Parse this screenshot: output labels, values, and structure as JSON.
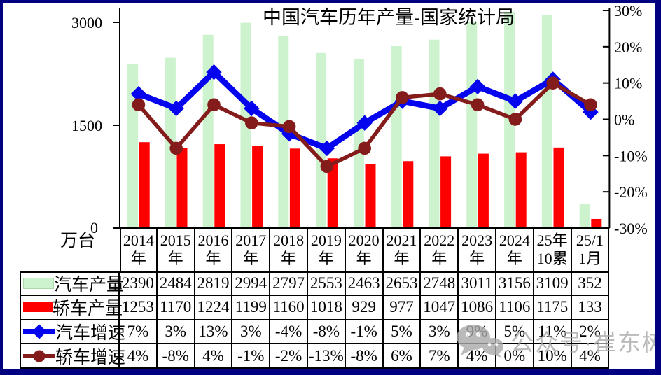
{
  "title": "中国汽车历年产量-国家统计局",
  "axis_left_unit": "万台",
  "axis_left_ticks": [
    "3000",
    "1500",
    "0"
  ],
  "axis_right_ticks": [
    "30%",
    "20%",
    "10%",
    "0%",
    "-10%",
    "-20%",
    "-30%"
  ],
  "watermark": {
    "label": "公众号·崔东树",
    "icon": "wechat-icon"
  },
  "colors": {
    "frame": "#000080",
    "table_border": "#000000",
    "watermark": "#A9A9A9"
  },
  "chart_data": {
    "type": "combo-bar-line",
    "title": "中国汽车历年产量-国家统计局",
    "categories": [
      "2014年",
      "2015年",
      "2016年",
      "2017年",
      "2018年",
      "2019年",
      "2020年",
      "2021年",
      "2022年",
      "2023年",
      "2024年",
      "25年10累",
      "25/11月"
    ],
    "categories_2line": [
      [
        "2014",
        "年"
      ],
      [
        "2015",
        "年"
      ],
      [
        "2016",
        "年"
      ],
      [
        "2017",
        "年"
      ],
      [
        "2018",
        "年"
      ],
      [
        "2019",
        "年"
      ],
      [
        "2020",
        "年"
      ],
      [
        "2021",
        "年"
      ],
      [
        "2022",
        "年"
      ],
      [
        "2023",
        "年"
      ],
      [
        "2024",
        "年"
      ],
      [
        "25年",
        "10累"
      ],
      [
        "25/1",
        "1月"
      ]
    ],
    "series": [
      {
        "name": "汽车产量",
        "type": "bar",
        "axis": "left",
        "color": "#CDF3CE",
        "values": [
          2390,
          2484,
          2819,
          2994,
          2797,
          2553,
          2463,
          2653,
          2748,
          3011,
          3156,
          3109,
          352
        ]
      },
      {
        "name": "轿车产量",
        "type": "bar",
        "axis": "left",
        "color": "#FE0000",
        "values": [
          1253,
          1170,
          1224,
          1199,
          1160,
          1018,
          929,
          977,
          1047,
          1086,
          1106,
          1175,
          133
        ]
      },
      {
        "name": "汽车增速",
        "type": "line",
        "axis": "right",
        "marker": "diamond",
        "color": "#0404EE",
        "values": [
          7,
          3,
          13,
          3,
          -4,
          -8,
          -1,
          5,
          3,
          9,
          5,
          11,
          2
        ]
      },
      {
        "name": "轿车增速",
        "type": "line",
        "axis": "right",
        "marker": "circle",
        "color": "#851C1C",
        "values": [
          4,
          -8,
          4,
          -1,
          -2,
          -13,
          -8,
          6,
          7,
          4,
          0,
          10,
          4
        ]
      }
    ],
    "axis_left": {
      "label": "万台",
      "min": 0,
      "max": 3200,
      "tick_values": [
        0,
        1500,
        3000
      ]
    },
    "axis_right": {
      "min": -30,
      "max": 30,
      "tick_step": 10,
      "format": "percent"
    },
    "grid": false,
    "legend_position": "table-left-column"
  },
  "table": {
    "rows": [
      {
        "label": "汽车产量",
        "swatch": "green-bar",
        "values": [
          "2390",
          "2484",
          "2819",
          "2994",
          "2797",
          "2553",
          "2463",
          "2653",
          "2748",
          "3011",
          "3156",
          "3109",
          "352"
        ]
      },
      {
        "label": "轿车产量",
        "swatch": "red-bar",
        "values": [
          "1253",
          "1170",
          "1224",
          "1199",
          "1160",
          "1018",
          "929",
          "977",
          "1047",
          "1086",
          "1106",
          "1175",
          "133"
        ]
      },
      {
        "label": "汽车增速",
        "swatch": "blue-line-diamond",
        "values": [
          "7%",
          "3%",
          "13%",
          "3%",
          "-4%",
          "-8%",
          "-1%",
          "5%",
          "3%",
          "9%",
          "5%",
          "11%",
          "2%"
        ]
      },
      {
        "label": "轿车增速",
        "swatch": "darkred-line-circle",
        "values": [
          "4%",
          "-8%",
          "4%",
          "-1%",
          "-2%",
          "-13%",
          "-8%",
          "6%",
          "7%",
          "4%",
          "0%",
          "10%",
          "4%"
        ]
      }
    ]
  }
}
